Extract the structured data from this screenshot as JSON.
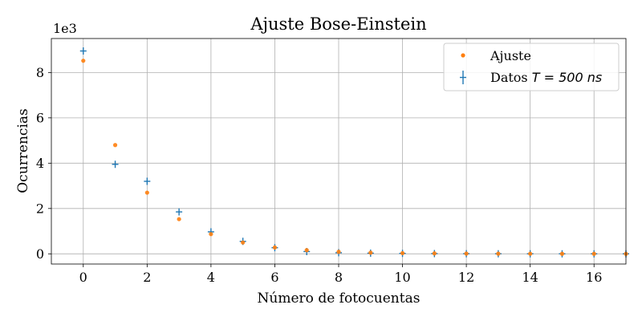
{
  "chart_data": {
    "type": "scatter",
    "title": "Ajuste Bose-Einstein",
    "xlabel": "Número de fotocuentas",
    "ylabel": "Ocurrencias",
    "offset_text": "1e3",
    "xlim": [
      -1,
      17
    ],
    "ylim": [
      -0.45,
      9.5
    ],
    "xticks": [
      0,
      2,
      4,
      6,
      8,
      10,
      12,
      14,
      16
    ],
    "yticks": [
      0,
      2,
      4,
      6,
      8
    ],
    "grid": true,
    "legend_position": "top-right",
    "series": [
      {
        "name": "Ajuste",
        "marker": "dot",
        "color": "#ff7f0e",
        "x": [
          0,
          1,
          2,
          3,
          4,
          5,
          6,
          7,
          8,
          9,
          10,
          11,
          12,
          13,
          14,
          15,
          16,
          17
        ],
        "y": [
          8.52,
          4.8,
          2.7,
          1.53,
          0.87,
          0.5,
          0.28,
          0.16,
          0.09,
          0.05,
          0.03,
          0.02,
          0.01,
          0.005,
          0.003,
          0.002,
          0.001,
          0.0
        ]
      },
      {
        "name_prefix": "Datos ",
        "name_math": "T = 500 ns",
        "marker": "errorbar",
        "color": "#1f77b4",
        "x": [
          0,
          1,
          2,
          3,
          4,
          5,
          6,
          7,
          8,
          9,
          10,
          11,
          12,
          13,
          14,
          15,
          16,
          17
        ],
        "y": [
          8.95,
          3.95,
          3.2,
          1.85,
          0.97,
          0.55,
          0.27,
          0.1,
          0.05,
          0.03,
          0.02,
          0.01,
          0.005,
          0.003,
          0.002,
          0.001,
          0.0,
          0.0
        ]
      }
    ]
  }
}
